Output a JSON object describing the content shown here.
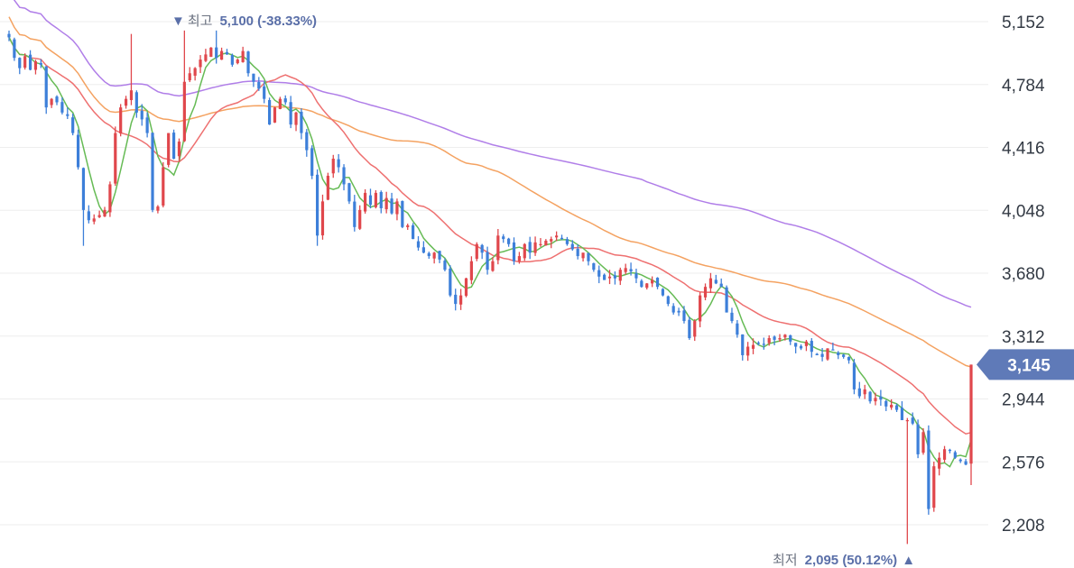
{
  "chart_data": {
    "type": "candlestick",
    "y_ticks": [
      "5,152",
      "4,784",
      "4,416",
      "4,048",
      "3,680",
      "3,312",
      "2,944",
      "2,576",
      "2,208"
    ],
    "y_tick_values": [
      5152,
      4784,
      4416,
      4048,
      3680,
      3312,
      2944,
      2576,
      2208
    ],
    "ylim": [
      2050,
      5200
    ],
    "grid": true,
    "current_price": {
      "label": "3,145",
      "value": 3145
    },
    "high_annotation": {
      "marker": "▼",
      "prefix": "최고",
      "text": "5,100 (-38.33%)",
      "value": 5100
    },
    "low_annotation": {
      "prefix": "최저",
      "text": "2,095 (50.12%)",
      "marker": "▲",
      "value": 2095
    },
    "colors": {
      "up": "#e0474c",
      "down": "#3d7fd9",
      "ma5": "#66bb55",
      "ma20": "#ee7070",
      "ma60": "#f4a261",
      "ma120": "#b07ee8",
      "price_tag": "#5f7ab8",
      "grid": "#eeeeee"
    },
    "closes": [
      5060,
      4940,
      4880,
      4950,
      4870,
      4920,
      4900,
      4650,
      4700,
      4680,
      4620,
      4600,
      4500,
      4300,
      4050,
      3990,
      4000,
      4020,
      4050,
      4200,
      4500,
      4650,
      4700,
      4750,
      4620,
      4580,
      4500,
      4050,
      4070,
      4300,
      4500,
      4350,
      4450,
      4800,
      4850,
      4880,
      4930,
      4960,
      5000,
      4940,
      4980,
      4960,
      4900,
      4930,
      4980,
      4850,
      4800,
      4760,
      4700,
      4550,
      4650,
      4700,
      4680,
      4550,
      4620,
      4500,
      4400,
      4250,
      3900,
      4100,
      4250,
      4350,
      4300,
      4200,
      4100,
      3950,
      4050,
      4150,
      4080,
      4150,
      4060,
      4120,
      4030,
      4100,
      3950,
      3960,
      3880,
      3830,
      3800,
      3780,
      3800,
      3760,
      3700,
      3550,
      3500,
      3550,
      3650,
      3750,
      3850,
      3800,
      3700,
      3750,
      3900,
      3880,
      3850,
      3750,
      3780,
      3850,
      3800,
      3860,
      3850,
      3870,
      3880,
      3900,
      3880,
      3850,
      3820,
      3780,
      3800,
      3750,
      3700,
      3660,
      3640,
      3660,
      3650,
      3700,
      3710,
      3690,
      3650,
      3600,
      3620,
      3640,
      3600,
      3550,
      3500,
      3450,
      3450,
      3400,
      3300,
      3400,
      3550,
      3600,
      3650,
      3620,
      3600,
      3450,
      3400,
      3320,
      3200,
      3250,
      3260,
      3270,
      3260,
      3300,
      3290,
      3300,
      3320,
      3280,
      3250,
      3240,
      3280,
      3220,
      3200,
      3190,
      3240,
      3230,
      3200,
      3190,
      3170,
      3000,
      2960,
      3000,
      2930,
      2950,
      2940,
      2900,
      2910,
      2880,
      2820,
      2820,
      2800,
      2620,
      2750,
      2300,
      2550,
      2600,
      2650,
      2640,
      2600,
      2580,
      2560,
      3145
    ]
  }
}
